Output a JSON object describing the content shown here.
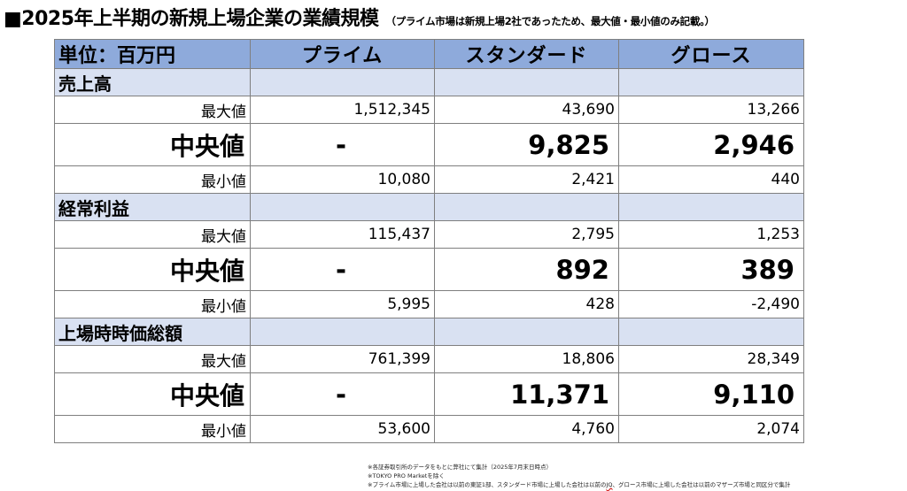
{
  "title": {
    "main": "■2025年上半期の新規上場企業の業績規模",
    "sub": "（プライム市場は新規上場2社であったため、最大値・最小値のみ記載。）"
  },
  "table": {
    "headers": [
      "単位：百万円",
      "プライム",
      "スタンダード",
      "グロース"
    ],
    "sections": [
      {
        "label": "売上高",
        "rows": [
          {
            "label": "最大値",
            "kind": "minmax",
            "values": [
              "1,512,345",
              "43,690",
              "13,266"
            ]
          },
          {
            "label": "中央値",
            "kind": "median",
            "values": [
              "-",
              "9,825",
              "2,946"
            ]
          },
          {
            "label": "最小値",
            "kind": "minmax",
            "values": [
              "10,080",
              "2,421",
              "440"
            ]
          }
        ]
      },
      {
        "label": "経常利益",
        "rows": [
          {
            "label": "最大値",
            "kind": "minmax",
            "values": [
              "115,437",
              "2,795",
              "1,253"
            ]
          },
          {
            "label": "中央値",
            "kind": "median",
            "values": [
              "-",
              "892",
              "389"
            ]
          },
          {
            "label": "最小値",
            "kind": "minmax",
            "values": [
              "5,995",
              "428",
              "-2,490"
            ]
          }
        ]
      },
      {
        "label": "上場時時価総額",
        "rows": [
          {
            "label": "最大値",
            "kind": "minmax",
            "values": [
              "761,399",
              "18,806",
              "28,349"
            ]
          },
          {
            "label": "中央値",
            "kind": "median",
            "values": [
              "-",
              "11,371",
              "9,110"
            ]
          },
          {
            "label": "最小値",
            "kind": "minmax",
            "values": [
              "53,600",
              "4,760",
              "2,074"
            ]
          }
        ]
      }
    ]
  },
  "notes": {
    "line1": "※各証券取引所のデータをもとに弊社にて集計（2025年7月末日時点）",
    "line2": "※TOKYO PRO Marketを除く",
    "line3a": "※プライム市場に上場した会社は以前の東証1部、スタンダード市場に上場した会社は以前の",
    "line3b": "JQ",
    "line3c": "、グロース市場に上場した会社は以前のマザーズ市場と同区分で集計"
  },
  "colors": {
    "header_bg": "#8eaadb",
    "section_bg": "#d9e1f2",
    "border": "#7f7f7f"
  }
}
